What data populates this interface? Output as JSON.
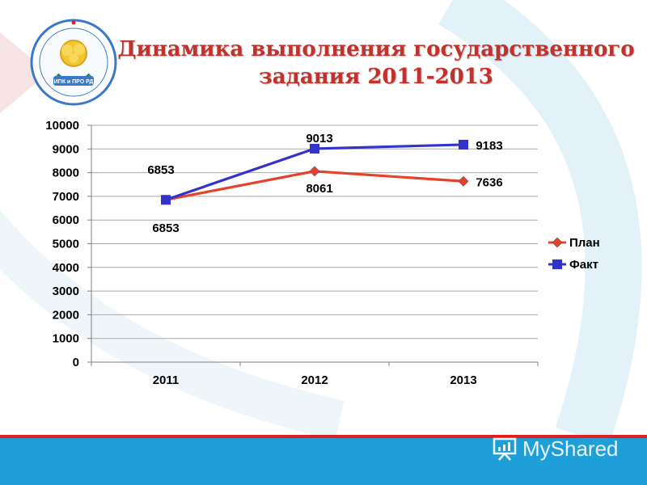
{
  "header": {
    "title_line1": "Динамика выполнения государственного",
    "title_line2": "задания 2011-2013"
  },
  "logo": {
    "icon": "rose-emblem-icon",
    "ring_text": "ИПК и ПРО",
    "center_text": "ИПК и ПРО РД"
  },
  "watermark": {
    "text": "MyShared",
    "icon": "presentation-board-icon"
  },
  "colors": {
    "plan": "#e8412b",
    "fact": "#3333cc",
    "title": "#c0322b",
    "accent_bar": "#e02020",
    "footer_blue": "#1f9fd8"
  },
  "chart_data": {
    "type": "line",
    "title": "",
    "xlabel": "",
    "ylabel": "",
    "categories": [
      "2011",
      "2012",
      "2013"
    ],
    "ylim": [
      0,
      10000
    ],
    "yticks": [
      0,
      1000,
      2000,
      3000,
      4000,
      5000,
      6000,
      7000,
      8000,
      9000,
      10000
    ],
    "grid": true,
    "legend": "right",
    "series": [
      {
        "name": "План",
        "values": [
          6853,
          8061,
          7636
        ],
        "color": "#e8412b",
        "marker": "diamond"
      },
      {
        "name": "Факт",
        "values": [
          6853,
          9013,
          9183
        ],
        "color": "#3333cc",
        "marker": "square"
      }
    ],
    "data_labels": {
      "План": [
        "6853",
        "8061",
        "7636"
      ],
      "Факт": [
        "6853",
        "9013",
        "9183"
      ]
    }
  }
}
